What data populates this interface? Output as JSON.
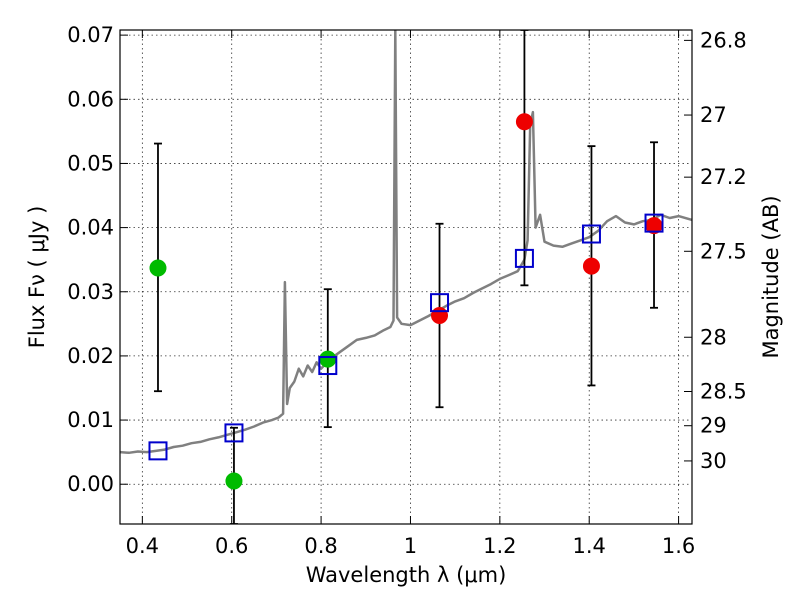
{
  "chart_data": {
    "type": "scatter",
    "xlabel": "Wavelength  λ (μm)",
    "ylabel_left": "Flux  Fν  ( μJy )",
    "ylabel_right": "Magnitude (AB)",
    "xlim": [
      0.35,
      1.63
    ],
    "ylim": [
      -0.0062,
      0.0708
    ],
    "grid": true,
    "x_ticks": [
      {
        "value": 0.4,
        "label": "0.4"
      },
      {
        "value": 0.6,
        "label": "0.6"
      },
      {
        "value": 0.8,
        "label": "0.8"
      },
      {
        "value": 1.0,
        "label": "1"
      },
      {
        "value": 1.2,
        "label": "1.2"
      },
      {
        "value": 1.4,
        "label": "1.4"
      },
      {
        "value": 1.6,
        "label": "1.6"
      }
    ],
    "y_ticks": [
      {
        "value": 0.0,
        "label": "0.00"
      },
      {
        "value": 0.01,
        "label": "0.01"
      },
      {
        "value": 0.02,
        "label": "0.02"
      },
      {
        "value": 0.03,
        "label": "0.03"
      },
      {
        "value": 0.04,
        "label": "0.04"
      },
      {
        "value": 0.05,
        "label": "0.05"
      },
      {
        "value": 0.06,
        "label": "0.06"
      },
      {
        "value": 0.07,
        "label": "0.07"
      }
    ],
    "right_ticks": [
      {
        "mag": 26.8,
        "label": "26.8"
      },
      {
        "mag": 27.0,
        "label": "27"
      },
      {
        "mag": 27.2,
        "label": "27.2"
      },
      {
        "mag": 27.5,
        "label": "27.5"
      },
      {
        "mag": 28.0,
        "label": "28"
      },
      {
        "mag": 28.5,
        "label": "28.5"
      },
      {
        "mag": 29.0,
        "label": "29"
      },
      {
        "mag": 30.0,
        "label": "30"
      }
    ],
    "series": [
      {
        "kind": "errorbar",
        "color": "#000000",
        "points": [
          {
            "x": 0.435,
            "y": 0.0337,
            "ylo": 0.0145,
            "yhi": 0.0531
          },
          {
            "x": 0.605,
            "y": 0.0005,
            "ylo": -0.0062,
            "yhi": 0.0088
          },
          {
            "x": 0.815,
            "y": 0.0195,
            "ylo": 0.0089,
            "yhi": 0.0304
          },
          {
            "x": 1.065,
            "y": 0.0263,
            "ylo": 0.012,
            "yhi": 0.0406
          },
          {
            "x": 1.255,
            "y": 0.0565,
            "ylo": 0.031,
            "yhi": 0.0708
          },
          {
            "x": 1.405,
            "y": 0.034,
            "ylo": 0.0154,
            "yhi": 0.0527
          },
          {
            "x": 1.545,
            "y": 0.0403,
            "ylo": 0.0275,
            "yhi": 0.0533
          }
        ]
      },
      {
        "kind": "points",
        "color": "#00bb00",
        "points": [
          {
            "x": 0.435,
            "y": 0.0337
          },
          {
            "x": 0.605,
            "y": 0.0005
          },
          {
            "x": 0.815,
            "y": 0.0195
          }
        ]
      },
      {
        "kind": "points",
        "color": "#ee0000",
        "points": [
          {
            "x": 1.065,
            "y": 0.0263
          },
          {
            "x": 1.255,
            "y": 0.0565
          },
          {
            "x": 1.405,
            "y": 0.034
          },
          {
            "x": 1.545,
            "y": 0.0403
          }
        ]
      },
      {
        "kind": "model_bandpass",
        "color": "#0000cc",
        "points": [
          {
            "x": 0.435,
            "y": 0.0052
          },
          {
            "x": 0.605,
            "y": 0.008
          },
          {
            "x": 0.815,
            "y": 0.0185
          },
          {
            "x": 1.065,
            "y": 0.0283
          },
          {
            "x": 1.255,
            "y": 0.0352
          },
          {
            "x": 1.405,
            "y": 0.039
          },
          {
            "x": 1.545,
            "y": 0.0407
          }
        ]
      },
      {
        "kind": "spectrum",
        "color": "#808080",
        "points": [
          {
            "x": 0.35,
            "y": 0.005
          },
          {
            "x": 0.37,
            "y": 0.0049
          },
          {
            "x": 0.39,
            "y": 0.0051
          },
          {
            "x": 0.41,
            "y": 0.005
          },
          {
            "x": 0.43,
            "y": 0.0052
          },
          {
            "x": 0.45,
            "y": 0.0054
          },
          {
            "x": 0.47,
            "y": 0.0058
          },
          {
            "x": 0.49,
            "y": 0.006
          },
          {
            "x": 0.51,
            "y": 0.0064
          },
          {
            "x": 0.53,
            "y": 0.0066
          },
          {
            "x": 0.55,
            "y": 0.007
          },
          {
            "x": 0.57,
            "y": 0.0073
          },
          {
            "x": 0.59,
            "y": 0.0077
          },
          {
            "x": 0.61,
            "y": 0.0081
          },
          {
            "x": 0.63,
            "y": 0.0085
          },
          {
            "x": 0.65,
            "y": 0.009
          },
          {
            "x": 0.67,
            "y": 0.0096
          },
          {
            "x": 0.69,
            "y": 0.01
          },
          {
            "x": 0.705,
            "y": 0.0104
          },
          {
            "x": 0.715,
            "y": 0.011
          },
          {
            "x": 0.719,
            "y": 0.0315
          },
          {
            "x": 0.724,
            "y": 0.0125
          },
          {
            "x": 0.73,
            "y": 0.015
          },
          {
            "x": 0.74,
            "y": 0.016
          },
          {
            "x": 0.75,
            "y": 0.018
          },
          {
            "x": 0.76,
            "y": 0.0168
          },
          {
            "x": 0.77,
            "y": 0.0185
          },
          {
            "x": 0.78,
            "y": 0.0175
          },
          {
            "x": 0.79,
            "y": 0.019
          },
          {
            "x": 0.8,
            "y": 0.018
          },
          {
            "x": 0.82,
            "y": 0.0195
          },
          {
            "x": 0.84,
            "y": 0.0205
          },
          {
            "x": 0.86,
            "y": 0.0215
          },
          {
            "x": 0.88,
            "y": 0.0225
          },
          {
            "x": 0.9,
            "y": 0.0228
          },
          {
            "x": 0.92,
            "y": 0.0232
          },
          {
            "x": 0.94,
            "y": 0.024
          },
          {
            "x": 0.955,
            "y": 0.0245
          },
          {
            "x": 0.962,
            "y": 0.0255
          },
          {
            "x": 0.966,
            "y": 0.0708
          },
          {
            "x": 0.97,
            "y": 0.026
          },
          {
            "x": 0.98,
            "y": 0.025
          },
          {
            "x": 1.0,
            "y": 0.0248
          },
          {
            "x": 1.02,
            "y": 0.0255
          },
          {
            "x": 1.04,
            "y": 0.0262
          },
          {
            "x": 1.06,
            "y": 0.027
          },
          {
            "x": 1.08,
            "y": 0.0278
          },
          {
            "x": 1.1,
            "y": 0.0285
          },
          {
            "x": 1.12,
            "y": 0.029
          },
          {
            "x": 1.14,
            "y": 0.0298
          },
          {
            "x": 1.16,
            "y": 0.0305
          },
          {
            "x": 1.18,
            "y": 0.0312
          },
          {
            "x": 1.2,
            "y": 0.032
          },
          {
            "x": 1.22,
            "y": 0.0326
          },
          {
            "x": 1.24,
            "y": 0.0332
          },
          {
            "x": 1.255,
            "y": 0.035
          },
          {
            "x": 1.262,
            "y": 0.038
          },
          {
            "x": 1.268,
            "y": 0.056
          },
          {
            "x": 1.274,
            "y": 0.058
          },
          {
            "x": 1.28,
            "y": 0.04
          },
          {
            "x": 1.29,
            "y": 0.042
          },
          {
            "x": 1.3,
            "y": 0.0378
          },
          {
            "x": 1.32,
            "y": 0.0372
          },
          {
            "x": 1.34,
            "y": 0.037
          },
          {
            "x": 1.36,
            "y": 0.0375
          },
          {
            "x": 1.38,
            "y": 0.038
          },
          {
            "x": 1.4,
            "y": 0.0385
          },
          {
            "x": 1.42,
            "y": 0.0395
          },
          {
            "x": 1.44,
            "y": 0.041
          },
          {
            "x": 1.46,
            "y": 0.0418
          },
          {
            "x": 1.48,
            "y": 0.0408
          },
          {
            "x": 1.5,
            "y": 0.0405
          },
          {
            "x": 1.52,
            "y": 0.041
          },
          {
            "x": 1.54,
            "y": 0.0412
          },
          {
            "x": 1.56,
            "y": 0.042
          },
          {
            "x": 1.58,
            "y": 0.0415
          },
          {
            "x": 1.6,
            "y": 0.0418
          },
          {
            "x": 1.63,
            "y": 0.0412
          }
        ]
      }
    ]
  }
}
